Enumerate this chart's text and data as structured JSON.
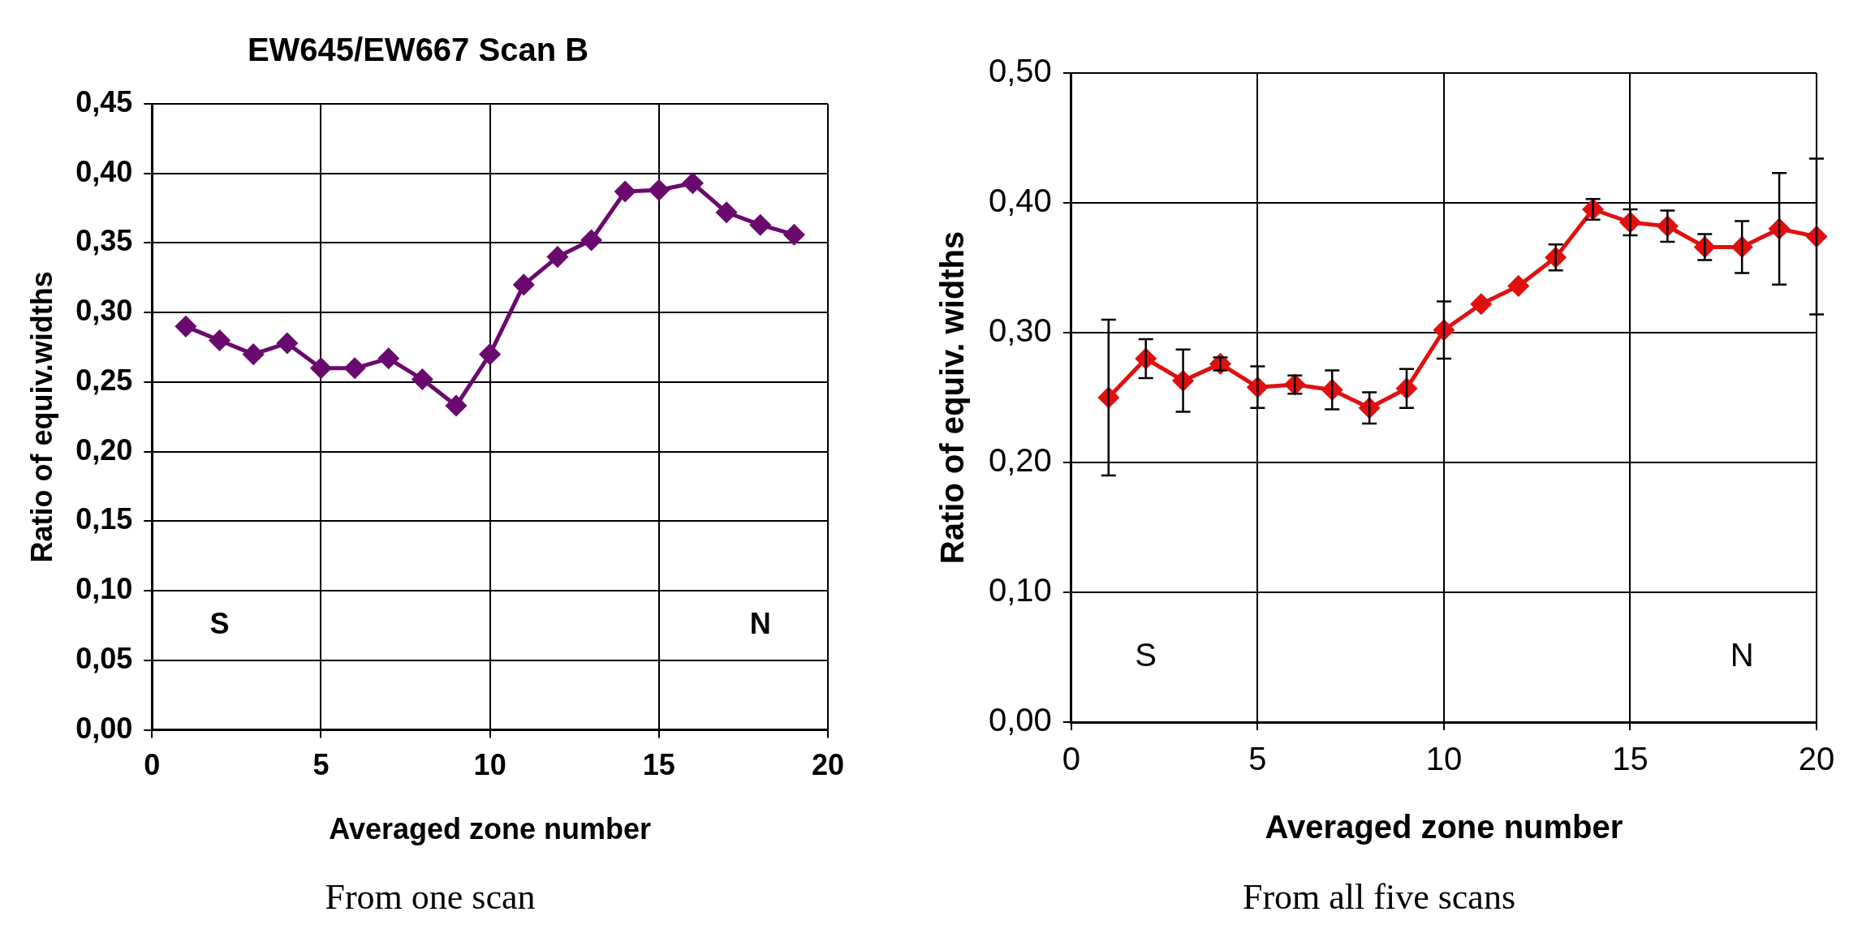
{
  "chart_data": [
    {
      "type": "line",
      "title": "EW645/EW667 Scan B",
      "xlabel": "Averaged zone number",
      "ylabel": "Ratio of equiv.widths",
      "annotations": [
        "S",
        "N",
        "From one scan"
      ],
      "x": [
        1,
        2,
        3,
        4,
        5,
        6,
        7,
        8,
        9,
        10,
        11,
        12,
        13,
        14,
        15,
        16,
        17,
        18,
        19
      ],
      "series": [
        {
          "color": "#6a0a6e",
          "values": [
            0.29,
            0.28,
            0.27,
            0.278,
            0.26,
            0.26,
            0.267,
            0.252,
            0.233,
            0.27,
            0.32,
            0.34,
            0.352,
            0.387,
            0.388,
            0.393,
            0.372,
            0.363,
            0.356
          ]
        }
      ],
      "xlim": [
        0,
        20
      ],
      "xticks": [
        0,
        5,
        10,
        15,
        20
      ],
      "ylim": [
        0,
        0.45
      ],
      "yticks": [
        {
          "value": 0,
          "label": "0,00"
        },
        {
          "value": 0.05,
          "label": "0,05"
        },
        {
          "value": 0.1,
          "label": "0,10"
        },
        {
          "value": 0.15,
          "label": "0,15"
        },
        {
          "value": 0.2,
          "label": "0,20"
        },
        {
          "value": 0.25,
          "label": "0,25"
        },
        {
          "value": 0.3,
          "label": "0,30"
        },
        {
          "value": 0.35,
          "label": "0,35"
        },
        {
          "value": 0.4,
          "label": "0,40"
        },
        {
          "value": 0.45,
          "label": "0,45"
        }
      ],
      "grid": true,
      "legend": false,
      "marker": "diamond",
      "line_style": "solid"
    },
    {
      "type": "line",
      "xlabel": "Averaged zone number",
      "ylabel": "Ratio of equiv. widths",
      "annotations": [
        "S",
        "N",
        "From all five scans"
      ],
      "x": [
        1,
        2,
        3,
        4,
        5,
        6,
        7,
        8,
        9,
        10,
        11,
        12,
        13,
        14,
        15,
        16,
        17,
        18,
        19,
        20
      ],
      "series": [
        {
          "color": "#e01010",
          "values": [
            0.25,
            0.28,
            0.263,
            0.276,
            0.258,
            0.26,
            0.256,
            0.242,
            0.257,
            0.302,
            0.322,
            0.336,
            0.358,
            0.395,
            0.385,
            0.382,
            0.366,
            0.366,
            0.38,
            0.374
          ],
          "errors": [
            0.06,
            0.015,
            0.024,
            0.005,
            0.016,
            0.007,
            0.015,
            0.012,
            0.015,
            0.022,
            null,
            null,
            0.01,
            0.008,
            0.01,
            0.012,
            0.01,
            0.02,
            0.043,
            0.06
          ]
        }
      ],
      "xlim": [
        0,
        20
      ],
      "xticks": [
        0,
        5,
        10,
        15,
        20
      ],
      "ylim": [
        0,
        0.5
      ],
      "yticks": [
        {
          "value": 0,
          "label": "0,00"
        },
        {
          "value": 0.1,
          "label": "0,10"
        },
        {
          "value": 0.2,
          "label": "0,20"
        },
        {
          "value": 0.3,
          "label": "0,30"
        },
        {
          "value": 0.4,
          "label": "0,40"
        },
        {
          "value": 0.5,
          "label": "0,50"
        }
      ],
      "grid": true,
      "legend": false,
      "marker": "diamond",
      "line_style": "solid"
    }
  ]
}
